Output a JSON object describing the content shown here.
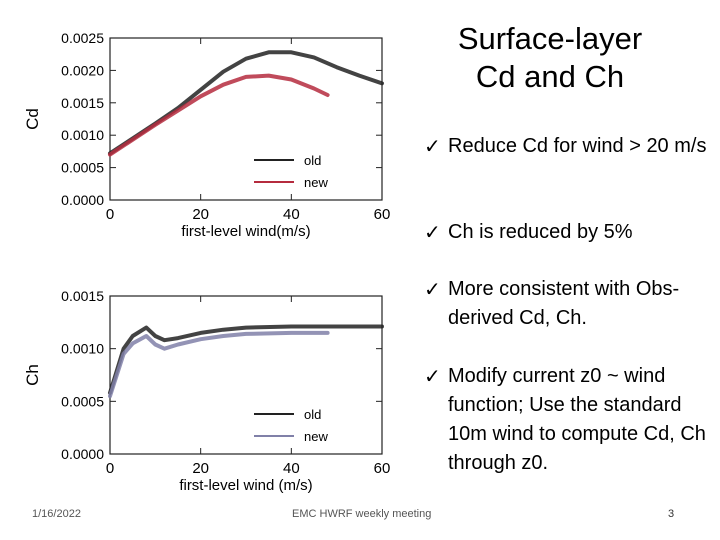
{
  "slide": {
    "title_line1": "Surface-layer",
    "title_line2": "Cd and Ch",
    "bullets": [
      "Reduce Cd for wind > 20 m/s",
      "Ch is reduced by 5%",
      "More consistent with Obs-derived Cd, Ch.",
      "Modify current z0 ~ wind function; Use the standard 10m wind to compute Cd, Ch through z0."
    ],
    "check_glyph": "✓"
  },
  "footer": {
    "date": "1/16/2022",
    "center": "EMC HWRF weekly meeting",
    "page": "3"
  },
  "chart_data": [
    {
      "type": "line",
      "title": "",
      "xlabel": "first-level wind(m/s)",
      "ylabel": "Cd",
      "xlim": [
        0,
        60
      ],
      "ylim": [
        0,
        0.0025
      ],
      "xticks": [
        0,
        20,
        40,
        60
      ],
      "yticks": [
        "0.0000",
        "0.0005",
        "0.0010",
        "0.0015",
        "0.0020",
        "0.0025"
      ],
      "legend_position": "bottom-right",
      "series": [
        {
          "name": "old",
          "color": "#222222",
          "x": [
            0,
            5,
            10,
            15,
            20,
            25,
            30,
            35,
            40,
            45,
            50,
            55,
            60
          ],
          "y": [
            0.00072,
            0.00095,
            0.00118,
            0.00142,
            0.0017,
            0.00198,
            0.00218,
            0.00228,
            0.00228,
            0.0022,
            0.00205,
            0.00192,
            0.0018
          ]
        },
        {
          "name": "new",
          "color": "#b52b3e",
          "x": [
            0,
            5,
            10,
            15,
            20,
            25,
            30,
            35,
            40,
            45,
            48
          ],
          "y": [
            0.0007,
            0.00093,
            0.00116,
            0.00138,
            0.0016,
            0.00178,
            0.0019,
            0.00192,
            0.00186,
            0.00172,
            0.00162
          ]
        }
      ]
    },
    {
      "type": "line",
      "title": "",
      "xlabel": "first-level wind (m/s)",
      "ylabel": "Ch",
      "xlim": [
        0,
        60
      ],
      "ylim": [
        0,
        0.0015
      ],
      "xticks": [
        0,
        20,
        40,
        60
      ],
      "yticks": [
        "0.0000",
        "0.0005",
        "0.0010",
        "0.0015"
      ],
      "legend_position": "bottom-right",
      "series": [
        {
          "name": "old",
          "color": "#222222",
          "x": [
            0,
            3,
            5,
            8,
            10,
            12,
            15,
            20,
            25,
            30,
            40,
            50,
            60
          ],
          "y": [
            0.00058,
            0.001,
            0.00112,
            0.0012,
            0.00112,
            0.00108,
            0.0011,
            0.00115,
            0.00118,
            0.0012,
            0.00121,
            0.00121,
            0.00121
          ]
        },
        {
          "name": "new",
          "color": "#8080a8",
          "x": [
            0,
            3,
            5,
            8,
            10,
            12,
            15,
            20,
            25,
            30,
            40,
            48
          ],
          "y": [
            0.00055,
            0.00095,
            0.00105,
            0.00112,
            0.00104,
            0.001,
            0.00104,
            0.00109,
            0.00112,
            0.00114,
            0.00115,
            0.00115
          ]
        }
      ]
    }
  ]
}
